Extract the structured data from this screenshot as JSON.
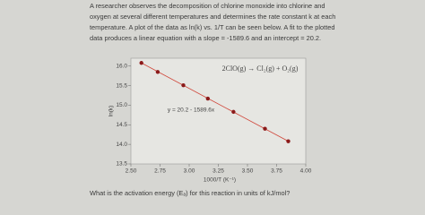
{
  "problem": {
    "text": "A researcher observes the decomposition of chlorine monoxide into chlorine and oxygen at several different temperatures and determines the rate constant k at each temperature. A plot of the data as ln(k) vs. 1/T can be seen below. A fit to the plotted data produces a linear equation with a slope = -1589.6 and an intercept = 20.2.",
    "question": "What is the activation energy (Eₐ) for this reaction in units of kJ/mol?"
  },
  "chart_data": {
    "type": "scatter",
    "x_label": "1000/T (K⁻¹)",
    "y_label": "ln(k)",
    "annotations": [
      "2ClO(g) → Cl₂(g) + O₂(g)",
      "y = 20.2 - 1589.6x"
    ],
    "series": [
      {
        "color": "#8b1a1a",
        "line_color": "#d0463a",
        "x": [
          2.59,
          2.73,
          2.95,
          3.16,
          3.38,
          3.65,
          3.85
        ],
        "values": [
          16.08,
          15.85,
          15.51,
          15.17,
          14.83,
          14.4,
          14.08
        ]
      }
    ],
    "xlim": [
      2.5,
      4.0
    ],
    "xticks": [
      {
        "value": 2.5,
        "label": "2.50"
      },
      2.75,
      {
        "value": 3.0,
        "label": "3.00"
      },
      3.25,
      {
        "value": 3.5,
        "label": "3.50"
      },
      3.75,
      {
        "value": 4.0,
        "label": "4.00"
      }
    ],
    "ylim": [
      13.5,
      16.2
    ],
    "yticks": [
      13.5,
      {
        "value": 14.0,
        "label": "14.0"
      },
      14.5,
      {
        "value": 15.0,
        "label": "15.0"
      },
      15.5,
      {
        "value": 16.0,
        "label": "16.0"
      }
    ]
  }
}
